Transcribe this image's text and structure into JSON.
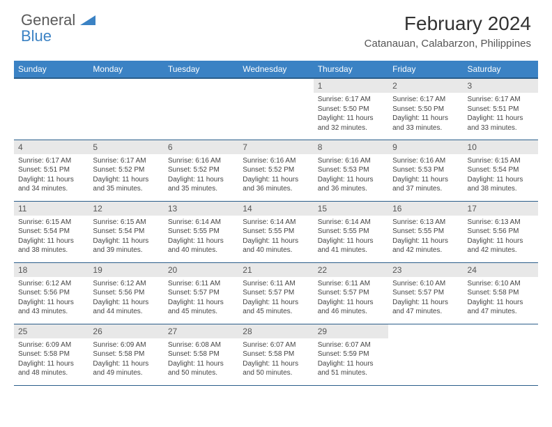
{
  "brand": {
    "word1": "General",
    "word2": "Blue",
    "word1_color": "#5a5a5a",
    "word2_color": "#3b82c4",
    "icon_color": "#3b82c4"
  },
  "title": "February 2024",
  "location": "Catanauan, Calabarzon, Philippines",
  "colors": {
    "header_bg": "#3b82c4",
    "header_text": "#ffffff",
    "row_divider": "#2a5d8a",
    "daynum_bg": "#e8e8e8",
    "daynum_text": "#555555",
    "body_text": "#444444",
    "page_bg": "#ffffff"
  },
  "typography": {
    "title_fontsize": 28,
    "location_fontsize": 15,
    "weekday_fontsize": 12,
    "daynum_fontsize": 12,
    "cell_fontsize": 10
  },
  "weekdays": [
    "Sunday",
    "Monday",
    "Tuesday",
    "Wednesday",
    "Thursday",
    "Friday",
    "Saturday"
  ],
  "weeks": [
    [
      null,
      null,
      null,
      null,
      {
        "n": "1",
        "sr": "Sunrise: 6:17 AM",
        "ss": "Sunset: 5:50 PM",
        "d1": "Daylight: 11 hours",
        "d2": "and 32 minutes."
      },
      {
        "n": "2",
        "sr": "Sunrise: 6:17 AM",
        "ss": "Sunset: 5:50 PM",
        "d1": "Daylight: 11 hours",
        "d2": "and 33 minutes."
      },
      {
        "n": "3",
        "sr": "Sunrise: 6:17 AM",
        "ss": "Sunset: 5:51 PM",
        "d1": "Daylight: 11 hours",
        "d2": "and 33 minutes."
      }
    ],
    [
      {
        "n": "4",
        "sr": "Sunrise: 6:17 AM",
        "ss": "Sunset: 5:51 PM",
        "d1": "Daylight: 11 hours",
        "d2": "and 34 minutes."
      },
      {
        "n": "5",
        "sr": "Sunrise: 6:17 AM",
        "ss": "Sunset: 5:52 PM",
        "d1": "Daylight: 11 hours",
        "d2": "and 35 minutes."
      },
      {
        "n": "6",
        "sr": "Sunrise: 6:16 AM",
        "ss": "Sunset: 5:52 PM",
        "d1": "Daylight: 11 hours",
        "d2": "and 35 minutes."
      },
      {
        "n": "7",
        "sr": "Sunrise: 6:16 AM",
        "ss": "Sunset: 5:52 PM",
        "d1": "Daylight: 11 hours",
        "d2": "and 36 minutes."
      },
      {
        "n": "8",
        "sr": "Sunrise: 6:16 AM",
        "ss": "Sunset: 5:53 PM",
        "d1": "Daylight: 11 hours",
        "d2": "and 36 minutes."
      },
      {
        "n": "9",
        "sr": "Sunrise: 6:16 AM",
        "ss": "Sunset: 5:53 PM",
        "d1": "Daylight: 11 hours",
        "d2": "and 37 minutes."
      },
      {
        "n": "10",
        "sr": "Sunrise: 6:15 AM",
        "ss": "Sunset: 5:54 PM",
        "d1": "Daylight: 11 hours",
        "d2": "and 38 minutes."
      }
    ],
    [
      {
        "n": "11",
        "sr": "Sunrise: 6:15 AM",
        "ss": "Sunset: 5:54 PM",
        "d1": "Daylight: 11 hours",
        "d2": "and 38 minutes."
      },
      {
        "n": "12",
        "sr": "Sunrise: 6:15 AM",
        "ss": "Sunset: 5:54 PM",
        "d1": "Daylight: 11 hours",
        "d2": "and 39 minutes."
      },
      {
        "n": "13",
        "sr": "Sunrise: 6:14 AM",
        "ss": "Sunset: 5:55 PM",
        "d1": "Daylight: 11 hours",
        "d2": "and 40 minutes."
      },
      {
        "n": "14",
        "sr": "Sunrise: 6:14 AM",
        "ss": "Sunset: 5:55 PM",
        "d1": "Daylight: 11 hours",
        "d2": "and 40 minutes."
      },
      {
        "n": "15",
        "sr": "Sunrise: 6:14 AM",
        "ss": "Sunset: 5:55 PM",
        "d1": "Daylight: 11 hours",
        "d2": "and 41 minutes."
      },
      {
        "n": "16",
        "sr": "Sunrise: 6:13 AM",
        "ss": "Sunset: 5:55 PM",
        "d1": "Daylight: 11 hours",
        "d2": "and 42 minutes."
      },
      {
        "n": "17",
        "sr": "Sunrise: 6:13 AM",
        "ss": "Sunset: 5:56 PM",
        "d1": "Daylight: 11 hours",
        "d2": "and 42 minutes."
      }
    ],
    [
      {
        "n": "18",
        "sr": "Sunrise: 6:12 AM",
        "ss": "Sunset: 5:56 PM",
        "d1": "Daylight: 11 hours",
        "d2": "and 43 minutes."
      },
      {
        "n": "19",
        "sr": "Sunrise: 6:12 AM",
        "ss": "Sunset: 5:56 PM",
        "d1": "Daylight: 11 hours",
        "d2": "and 44 minutes."
      },
      {
        "n": "20",
        "sr": "Sunrise: 6:11 AM",
        "ss": "Sunset: 5:57 PM",
        "d1": "Daylight: 11 hours",
        "d2": "and 45 minutes."
      },
      {
        "n": "21",
        "sr": "Sunrise: 6:11 AM",
        "ss": "Sunset: 5:57 PM",
        "d1": "Daylight: 11 hours",
        "d2": "and 45 minutes."
      },
      {
        "n": "22",
        "sr": "Sunrise: 6:11 AM",
        "ss": "Sunset: 5:57 PM",
        "d1": "Daylight: 11 hours",
        "d2": "and 46 minutes."
      },
      {
        "n": "23",
        "sr": "Sunrise: 6:10 AM",
        "ss": "Sunset: 5:57 PM",
        "d1": "Daylight: 11 hours",
        "d2": "and 47 minutes."
      },
      {
        "n": "24",
        "sr": "Sunrise: 6:10 AM",
        "ss": "Sunset: 5:58 PM",
        "d1": "Daylight: 11 hours",
        "d2": "and 47 minutes."
      }
    ],
    [
      {
        "n": "25",
        "sr": "Sunrise: 6:09 AM",
        "ss": "Sunset: 5:58 PM",
        "d1": "Daylight: 11 hours",
        "d2": "and 48 minutes."
      },
      {
        "n": "26",
        "sr": "Sunrise: 6:09 AM",
        "ss": "Sunset: 5:58 PM",
        "d1": "Daylight: 11 hours",
        "d2": "and 49 minutes."
      },
      {
        "n": "27",
        "sr": "Sunrise: 6:08 AM",
        "ss": "Sunset: 5:58 PM",
        "d1": "Daylight: 11 hours",
        "d2": "and 50 minutes."
      },
      {
        "n": "28",
        "sr": "Sunrise: 6:07 AM",
        "ss": "Sunset: 5:58 PM",
        "d1": "Daylight: 11 hours",
        "d2": "and 50 minutes."
      },
      {
        "n": "29",
        "sr": "Sunrise: 6:07 AM",
        "ss": "Sunset: 5:59 PM",
        "d1": "Daylight: 11 hours",
        "d2": "and 51 minutes."
      },
      null,
      null
    ]
  ]
}
